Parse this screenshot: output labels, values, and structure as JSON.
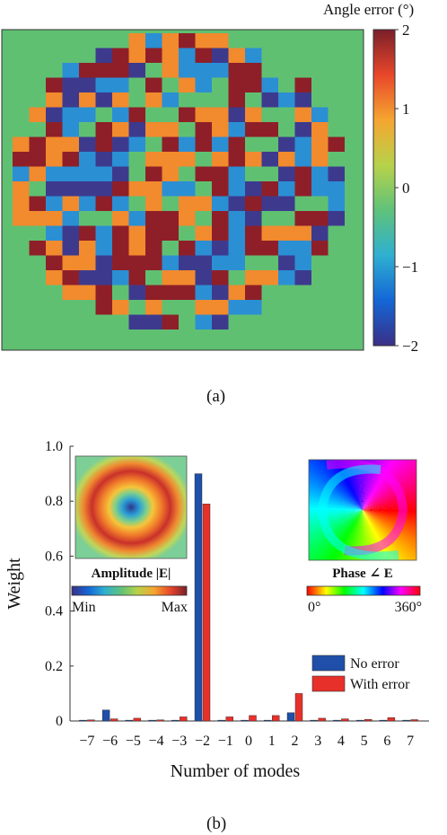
{
  "panel_a": {
    "label": "(a)",
    "colorbar": {
      "title": "Angle error (°)",
      "ticks": [
        "2",
        "1",
        "0",
        "−1",
        "−2"
      ],
      "tick_values": [
        2,
        1,
        0,
        -1,
        -2
      ],
      "range": [
        -2,
        2
      ],
      "colormap": "jet",
      "colors": [
        "#3a2f86",
        "#1466d6",
        "#2fb0d0",
        "#5fc27a",
        "#b7d24a",
        "#f5a630",
        "#e8472a",
        "#7a1f2a"
      ]
    },
    "background_color": "#60c072",
    "grid_size": [
      20,
      20
    ],
    "levels": {
      "-2": "#3d3a8e",
      "-1": "#2b8fd4",
      "0": "#60c072",
      "1": "#f28a2e",
      "2": "#8e1f28"
    }
  },
  "panel_b": {
    "label": "(b)",
    "xlabel": "Number of modes",
    "ylabel": "Weight",
    "legend": [
      "No error",
      "With error"
    ],
    "inset_amplitude": {
      "title": "Amplitude |E|",
      "min_label": "Min",
      "max_label": "Max"
    },
    "inset_phase": {
      "title": "Phase ∠ E",
      "min_label": "0°",
      "max_label": "360°"
    }
  },
  "chart_data": {
    "type": "bar",
    "categories": [
      "−7",
      "−6",
      "−5",
      "−4",
      "−3",
      "−2",
      "−1",
      "0",
      "1",
      "2",
      "3",
      "4",
      "5",
      "6",
      "7"
    ],
    "ylim": [
      0,
      1.0
    ],
    "yticks": [
      "0",
      "0.2",
      "0.4",
      "0.6",
      "0.8",
      "1.0"
    ],
    "ytick_values": [
      0,
      0.2,
      0.4,
      0.6,
      0.8,
      1.0
    ],
    "series": [
      {
        "name": "No error",
        "color": "#1f4fa8",
        "values": [
          0.003,
          0.04,
          0.003,
          0.003,
          0.003,
          0.9,
          0.003,
          0.003,
          0.003,
          0.03,
          0.003,
          0.003,
          0.003,
          0.003,
          0.003
        ]
      },
      {
        "name": "With error",
        "color": "#e8302a",
        "values": [
          0.004,
          0.008,
          0.01,
          0.004,
          0.015,
          0.79,
          0.015,
          0.02,
          0.02,
          0.1,
          0.01,
          0.008,
          0.006,
          0.012,
          0.005
        ]
      }
    ],
    "grid": false,
    "legend_position": "bottom-right"
  }
}
